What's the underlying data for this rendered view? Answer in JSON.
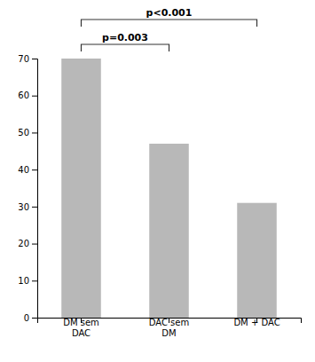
{
  "chart_data": {
    "type": "bar",
    "categories": [
      "DM sem\nDAC",
      "DAC sem\nDM",
      "DM + DAC"
    ],
    "values": [
      70,
      47,
      31
    ],
    "color": "#b8b8b8",
    "ylim": [
      0,
      70
    ],
    "yticks": [
      0,
      10,
      20,
      30,
      40,
      50,
      60,
      70
    ],
    "grid": false,
    "annotations": [
      {
        "text": "p=0.003",
        "between": [
          "DM sem\nDAC",
          "DAC sem\nDM"
        ]
      },
      {
        "text": "p<0.001",
        "between": [
          "DM sem\nDAC",
          "DM + DAC"
        ]
      }
    ]
  }
}
